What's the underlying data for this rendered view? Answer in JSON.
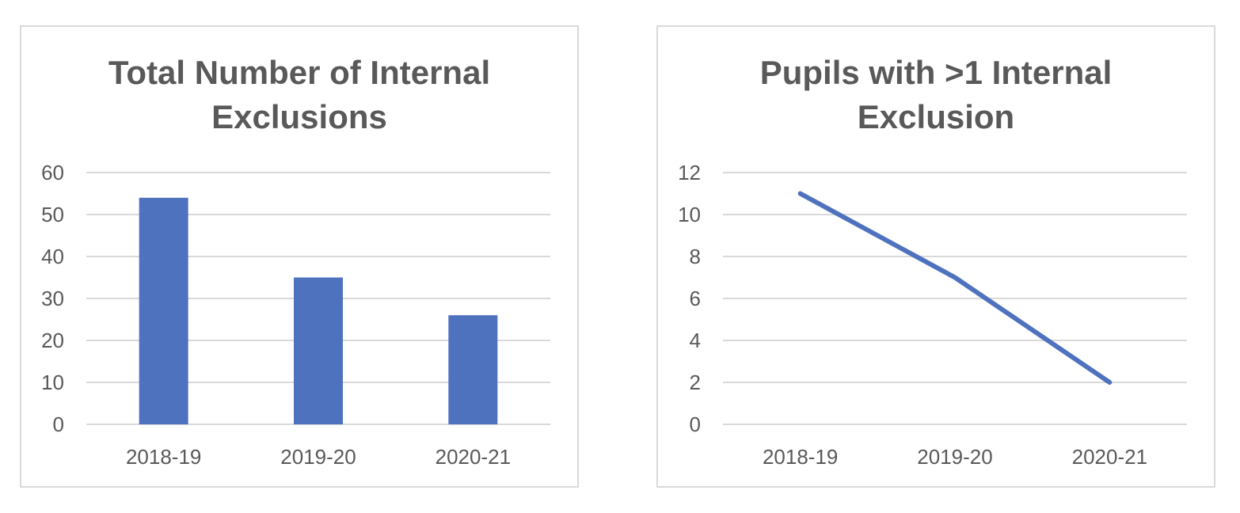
{
  "chart_data": [
    {
      "type": "bar",
      "title": "Total Number of Internal Exclusions",
      "xlabel": "",
      "ylabel": "",
      "categories": [
        "2018-19",
        "2019-20",
        "2020-21"
      ],
      "values": [
        54,
        35,
        26
      ],
      "ylim": [
        0,
        60
      ],
      "yticks": [
        0,
        10,
        20,
        30,
        40,
        50,
        60
      ],
      "grid": true,
      "color": "#4f72be"
    },
    {
      "type": "line",
      "title": "Pupils with >1 Internal Exclusion",
      "xlabel": "",
      "ylabel": "",
      "categories": [
        "2018-19",
        "2019-20",
        "2020-21"
      ],
      "values": [
        11,
        7,
        2
      ],
      "ylim": [
        0,
        12
      ],
      "yticks": [
        0,
        2,
        4,
        6,
        8,
        10,
        12
      ],
      "grid": true,
      "color": "#4f72be"
    }
  ]
}
